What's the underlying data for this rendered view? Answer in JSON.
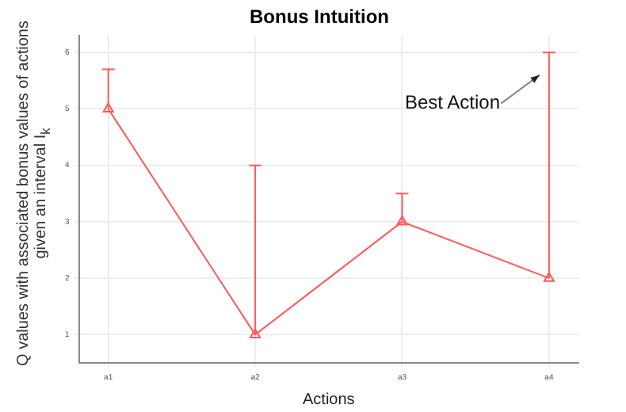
{
  "chart_data": {
    "type": "line",
    "title": "Bonus Intuition",
    "xlabel": "Actions",
    "ylabel": "Q values with associated bonus values of actions given an interval I$_{k}$",
    "categories": [
      "a1",
      "a2",
      "a3",
      "a4"
    ],
    "series": [
      {
        "color": "#ff5a5a",
        "values": [
          5,
          1,
          3,
          2
        ],
        "errors": [
          [
            5,
            5.7
          ],
          [
            1,
            4
          ],
          [
            3,
            3.5
          ],
          [
            2,
            6
          ]
        ]
      }
    ],
    "ylim": [
      0.5,
      6.3
    ],
    "yticks": [
      1,
      2,
      3,
      4,
      5,
      6
    ],
    "grid": true,
    "legend": false,
    "marker": "triangle",
    "line_style": "solid",
    "annotations": [
      {
        "text": "Best Action",
        "x": "a4",
        "y": 5.6
      }
    ]
  }
}
